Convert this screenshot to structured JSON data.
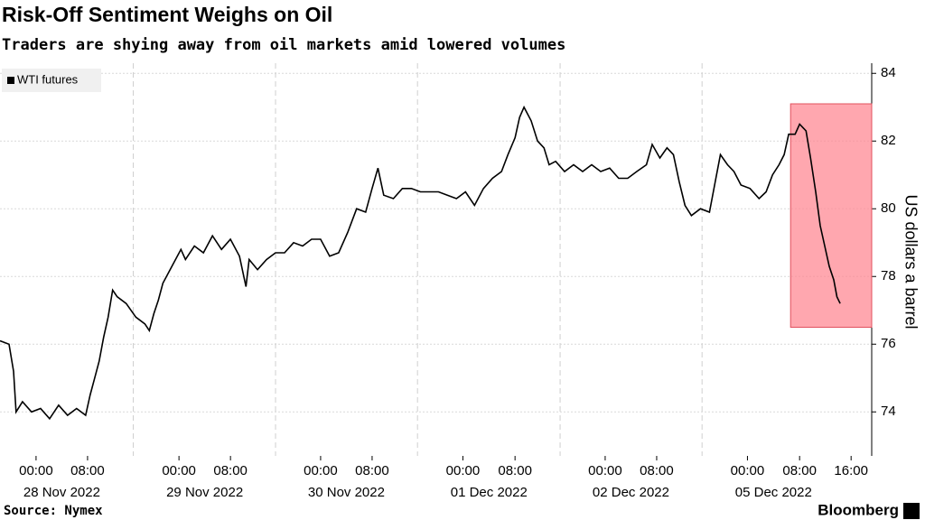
{
  "chart_data": {
    "type": "line",
    "title": "Risk-Off Sentiment Weighs on Oil",
    "subtitle": "Traders are shying away from oil markets amid lowered volumes",
    "y_label": "US dollars a barrel",
    "source": "Source: Nymex",
    "brand": "Bloomberg",
    "legend": "top-left",
    "grid": true,
    "x": [
      0,
      1.4,
      2.1,
      2.5,
      3.5,
      4.9,
      6.3,
      7.7,
      9.1,
      10.5,
      11.9,
      13.3,
      14.0,
      14.7,
      15.4,
      16.1,
      16.8,
      17.5,
      18.2,
      19.6,
      21.1,
      22.5,
      23.2,
      23.9,
      24.6,
      25.3,
      26.7,
      28.1,
      28.8,
      30.2,
      31.6,
      33.0,
      34.4,
      35.8,
      37.2,
      38.2,
      38.7,
      40.0,
      41.4,
      42.8,
      44.2,
      45.6,
      47.0,
      48.4,
      49.8,
      51.2,
      52.6,
      54.0,
      55.4,
      56.8,
      57.8,
      58.7,
      59.6,
      61.1,
      62.5,
      63.9,
      65.3,
      66.7,
      68.1,
      69.5,
      70.9,
      72.3,
      73.7,
      75.1,
      76.5,
      77.9,
      78.9,
      80.0,
      80.7,
      81.4,
      82.5,
      83.5,
      84.5,
      85.3,
      86.3,
      87.7,
      89.1,
      90.5,
      91.9,
      93.3,
      94.7,
      96.1,
      97.5,
      98.9,
      100.4,
      101.3,
      102.5,
      103.6,
      104.6,
      105.5,
      106.4,
      107.4,
      108.8,
      110.2,
      111.2,
      111.9,
      113.0,
      114.0,
      115.1,
      116.5,
      117.9,
      119.0,
      120.0,
      121.0,
      121.8,
      122.5,
      123.5,
      124.2,
      125.2,
      125.9,
      126.7,
      127.4,
      128.1,
      128.8,
      129.5,
      130.0,
      130.5
    ],
    "series": [
      {
        "name": "WTI futures",
        "color": "#000000",
        "values": [
          76.1,
          76.0,
          75.2,
          74.0,
          74.3,
          74.0,
          74.1,
          73.8,
          74.2,
          73.9,
          74.1,
          73.9,
          74.5,
          75.0,
          75.5,
          76.2,
          76.8,
          77.6,
          77.4,
          77.2,
          76.8,
          76.6,
          76.4,
          76.9,
          77.3,
          77.8,
          78.3,
          78.8,
          78.5,
          78.9,
          78.7,
          79.2,
          78.8,
          79.1,
          78.6,
          77.7,
          78.5,
          78.2,
          78.5,
          78.7,
          78.7,
          79.0,
          78.9,
          79.1,
          79.1,
          78.6,
          78.7,
          79.3,
          80.0,
          79.9,
          80.6,
          81.2,
          80.4,
          80.3,
          80.6,
          80.6,
          80.5,
          80.5,
          80.5,
          80.4,
          80.3,
          80.5,
          80.1,
          80.6,
          80.9,
          81.1,
          81.6,
          82.1,
          82.7,
          83.0,
          82.6,
          82.0,
          81.8,
          81.3,
          81.4,
          81.1,
          81.3,
          81.1,
          81.3,
          81.1,
          81.2,
          80.9,
          80.9,
          81.1,
          81.3,
          81.9,
          81.5,
          81.8,
          81.6,
          80.8,
          80.1,
          79.8,
          80.0,
          79.9,
          80.9,
          81.6,
          81.3,
          81.1,
          80.7,
          80.6,
          80.3,
          80.5,
          81.0,
          81.3,
          81.6,
          82.2,
          82.2,
          82.5,
          82.3,
          81.5,
          80.5,
          79.5,
          78.9,
          78.3,
          77.9,
          77.4,
          77.2
        ]
      }
    ],
    "xlim": [
      0,
      135.4
    ],
    "xticks": [
      {
        "value": 5.6,
        "label": "00:00"
      },
      {
        "value": 13.6,
        "label": "08:00"
      },
      {
        "value": 27.8,
        "label": "00:00"
      },
      {
        "value": 35.8,
        "label": "08:00"
      },
      {
        "value": 49.8,
        "label": "00:00"
      },
      {
        "value": 57.8,
        "label": "08:00"
      },
      {
        "value": 71.9,
        "label": "00:00"
      },
      {
        "value": 80.0,
        "label": "08:00"
      },
      {
        "value": 94.0,
        "label": "00:00"
      },
      {
        "value": 102.0,
        "label": "08:00"
      },
      {
        "value": 116.1,
        "label": "00:00"
      },
      {
        "value": 124.2,
        "label": "08:00"
      },
      {
        "value": 132.2,
        "label": "16:00"
      }
    ],
    "x_groups": [
      "28 Nov 2022",
      "29 Nov 2022",
      "30 Nov 2022",
      "01 Dec 2022",
      "02 Dec 2022",
      "05 Dec 2022"
    ],
    "ylim": [
      72.7,
      84.3
    ],
    "yticks": [
      74,
      76,
      78,
      80,
      82,
      84
    ],
    "highlight": {
      "x": [
        122.8,
        135.4
      ],
      "y": [
        76.5,
        83.1
      ],
      "color": "#ff8a94"
    }
  }
}
